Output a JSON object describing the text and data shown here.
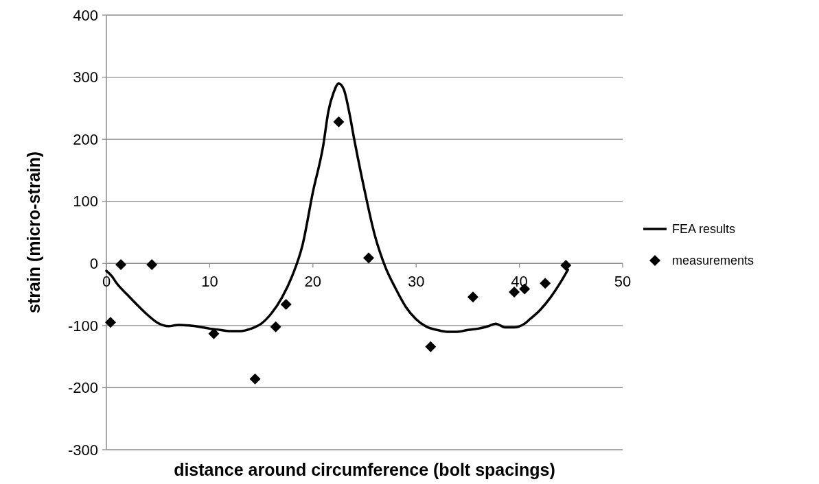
{
  "chart_data": {
    "type": "line",
    "xlabel": "distance around circumference (bolt spacings)",
    "ylabel": "strain (micro-strain)",
    "xlim": [
      0,
      50
    ],
    "xticks": [
      0,
      10,
      20,
      30,
      40,
      50
    ],
    "ylim": [
      -300,
      400
    ],
    "yticks": [
      -300,
      -200,
      -100,
      0,
      100,
      200,
      300,
      400
    ],
    "grid": "y",
    "legend": "right",
    "series": [
      {
        "name": "FEA results",
        "color": "#000000",
        "marker": "none",
        "x": [
          0,
          0.5,
          1,
          2,
          3,
          4,
          5,
          6,
          7,
          8,
          9,
          10,
          11,
          12,
          13,
          14,
          15,
          16,
          17,
          18,
          19,
          20,
          21,
          21.5,
          22,
          22.5,
          23,
          23.5,
          24,
          25,
          26,
          27,
          28,
          29,
          30,
          31,
          32,
          33,
          34,
          35,
          36,
          37,
          37.7,
          38.6,
          39.5,
          40.5,
          41,
          42,
          43,
          44,
          44.7
        ],
        "values": [
          -12,
          -20,
          -32,
          -50,
          -67,
          -83,
          -96,
          -101,
          -99,
          -100,
          -102,
          -105,
          -107,
          -109,
          -109,
          -105,
          -97,
          -80,
          -55,
          -20,
          30,
          115,
          190,
          245,
          275,
          290,
          280,
          245,
          200,
          118,
          45,
          -5,
          -40,
          -70,
          -90,
          -102,
          -107,
          -110,
          -110,
          -107,
          -105,
          -101,
          -97,
          -103,
          -103,
          -97,
          -90,
          -75,
          -55,
          -30,
          -10
        ]
      },
      {
        "name": "measurements",
        "type": "scatter",
        "color": "#000000",
        "marker": "diamond",
        "x": [
          0.4,
          1.4,
          4.4,
          10.4,
          14.4,
          16.4,
          17.4,
          22.5,
          25.4,
          31.4,
          35.5,
          39.5,
          40.5,
          42.5,
          44.5
        ],
        "values": [
          -95,
          -2,
          -2,
          -113,
          -186,
          -102,
          -66,
          228,
          9,
          -134,
          -54,
          -46,
          -41,
          -32,
          -3
        ]
      }
    ]
  }
}
